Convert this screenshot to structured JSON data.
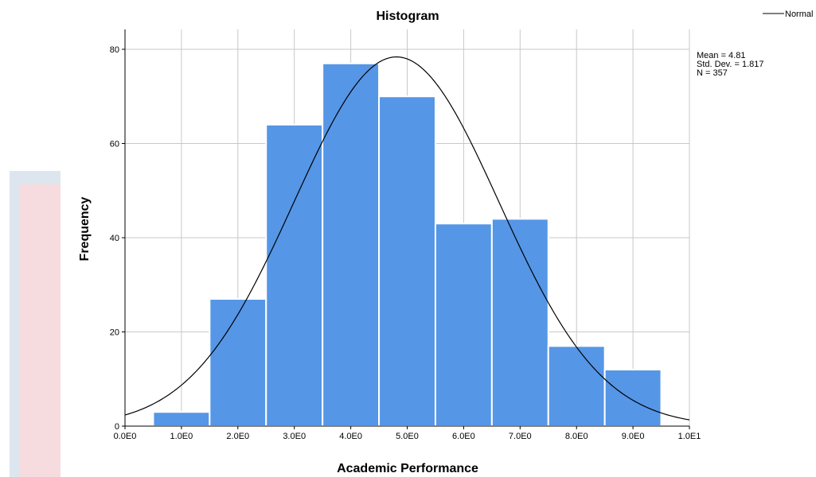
{
  "chart_data": {
    "type": "bar",
    "title": "Histogram",
    "xlabel": "Academic Performance",
    "ylabel": "Frequency",
    "xlim": [
      0,
      10
    ],
    "ylim": [
      0,
      85
    ],
    "x_ticks": [
      0,
      1,
      2,
      3,
      4,
      5,
      6,
      7,
      8,
      9,
      10
    ],
    "x_tick_labels": [
      "0.0E0",
      "1.0E0",
      "2.0E0",
      "3.0E0",
      "4.0E0",
      "5.0E0",
      "6.0E0",
      "7.0E0",
      "8.0E0",
      "9.0E0",
      "1.0E1"
    ],
    "y_ticks": [
      0,
      20,
      40,
      60,
      80
    ],
    "y_tick_labels": [
      "0",
      "20",
      "40",
      "60",
      "80"
    ],
    "bins": [
      {
        "from": 0.5,
        "to": 1.5,
        "count": 3
      },
      {
        "from": 1.5,
        "to": 2.5,
        "count": 27
      },
      {
        "from": 2.5,
        "to": 3.5,
        "count": 64
      },
      {
        "from": 3.5,
        "to": 4.5,
        "count": 77
      },
      {
        "from": 4.5,
        "to": 5.5,
        "count": 70
      },
      {
        "from": 5.5,
        "to": 6.5,
        "count": 43
      },
      {
        "from": 6.5,
        "to": 7.5,
        "count": 44
      },
      {
        "from": 7.5,
        "to": 8.5,
        "count": 17
      },
      {
        "from": 8.5,
        "to": 9.5,
        "count": 12
      }
    ],
    "normal_curve": {
      "mean": 4.81,
      "std_dev": 1.817,
      "n": 357,
      "bin_width": 1
    },
    "stats": [
      "Mean = 4.81",
      "Std. Dev. = 1.817",
      "N = 357"
    ],
    "legend": {
      "label": "Normal",
      "position": "top-right"
    },
    "grid": true,
    "colors": {
      "bar": "#5596e6",
      "bar_edge": "#ffffff",
      "grid": "#c8c8c8",
      "curve": "#000000"
    }
  }
}
